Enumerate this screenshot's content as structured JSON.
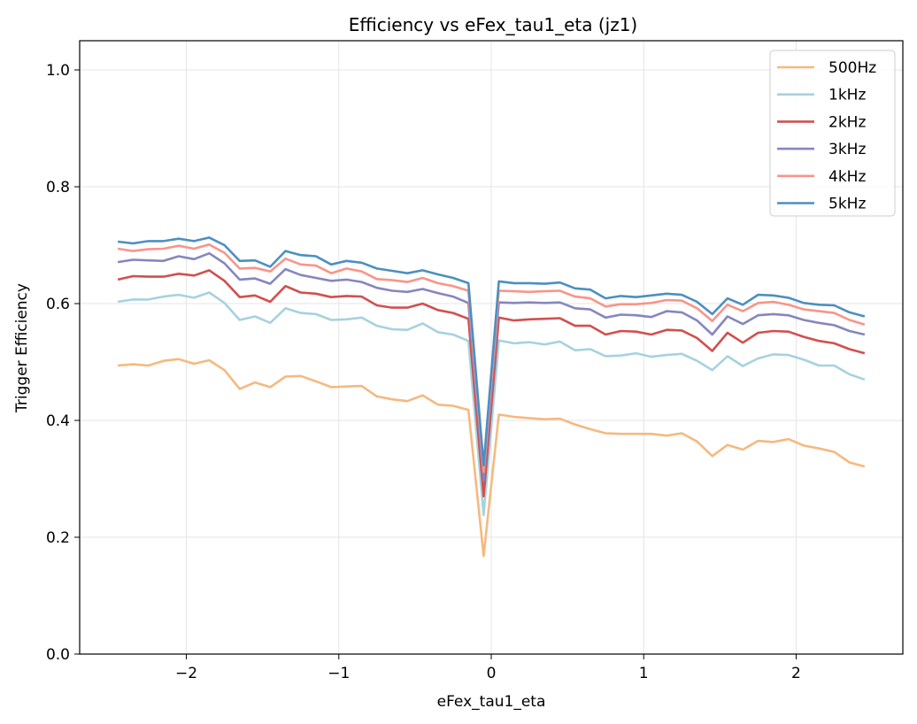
{
  "chart_data": {
    "type": "line",
    "title": "Efficiency vs eFex_tau1_eta (jz1)",
    "xlabel": "eFex_tau1_eta",
    "ylabel": "Trigger Efficiency",
    "xlim": [
      -2.7,
      2.7
    ],
    "ylim": [
      0.0,
      1.05
    ],
    "xticks": [
      -2,
      -1,
      0,
      1,
      2
    ],
    "xtick_labels": [
      "−2",
      "−1",
      "0",
      "1",
      "2"
    ],
    "yticks": [
      0.0,
      0.2,
      0.4,
      0.6,
      0.8,
      1.0
    ],
    "ytick_labels": [
      "0.0",
      "0.2",
      "0.4",
      "0.6",
      "0.8",
      "1.0"
    ],
    "grid": true,
    "legend_position": "top-right",
    "x": [
      -2.45,
      -2.35,
      -2.25,
      -2.15,
      -2.05,
      -1.95,
      -1.85,
      -1.75,
      -1.65,
      -1.55,
      -1.45,
      -1.35,
      -1.25,
      -1.15,
      -1.05,
      -0.95,
      -0.85,
      -0.75,
      -0.65,
      -0.55,
      -0.45,
      -0.35,
      -0.25,
      -0.15,
      -0.05,
      0.05,
      0.15,
      0.25,
      0.35,
      0.45,
      0.55,
      0.65,
      0.75,
      0.85,
      0.95,
      1.05,
      1.15,
      1.25,
      1.35,
      1.45,
      1.55,
      1.65,
      1.75,
      1.85,
      1.95,
      2.05,
      2.15,
      2.25,
      2.35,
      2.45
    ],
    "series": [
      {
        "name": "500Hz",
        "color": "#f5b97f",
        "values": [
          0.494,
          0.496,
          0.494,
          0.502,
          0.505,
          0.497,
          0.503,
          0.486,
          0.454,
          0.465,
          0.457,
          0.475,
          0.476,
          0.467,
          0.457,
          0.458,
          0.459,
          0.441,
          0.436,
          0.433,
          0.443,
          0.427,
          0.425,
          0.418,
          0.168,
          0.41,
          0.406,
          0.404,
          0.402,
          0.403,
          0.393,
          0.385,
          0.378,
          0.377,
          0.377,
          0.377,
          0.374,
          0.378,
          0.364,
          0.339,
          0.358,
          0.35,
          0.365,
          0.363,
          0.368,
          0.357,
          0.352,
          0.346,
          0.328,
          0.321
        ]
      },
      {
        "name": "1kHz",
        "color": "#a6d2e0",
        "values": [
          0.603,
          0.607,
          0.607,
          0.612,
          0.615,
          0.61,
          0.619,
          0.601,
          0.572,
          0.578,
          0.567,
          0.592,
          0.584,
          0.582,
          0.572,
          0.573,
          0.576,
          0.562,
          0.556,
          0.555,
          0.566,
          0.551,
          0.547,
          0.536,
          0.238,
          0.537,
          0.532,
          0.534,
          0.53,
          0.535,
          0.52,
          0.522,
          0.51,
          0.511,
          0.515,
          0.509,
          0.512,
          0.514,
          0.502,
          0.486,
          0.51,
          0.493,
          0.506,
          0.513,
          0.512,
          0.504,
          0.494,
          0.494,
          0.479,
          0.47
        ]
      },
      {
        "name": "2kHz",
        "color": "#d1504e",
        "values": [
          0.641,
          0.647,
          0.646,
          0.646,
          0.651,
          0.648,
          0.657,
          0.639,
          0.611,
          0.614,
          0.603,
          0.63,
          0.619,
          0.617,
          0.611,
          0.613,
          0.612,
          0.597,
          0.593,
          0.593,
          0.6,
          0.589,
          0.584,
          0.574,
          0.27,
          0.576,
          0.571,
          0.573,
          0.574,
          0.575,
          0.562,
          0.562,
          0.547,
          0.553,
          0.552,
          0.547,
          0.555,
          0.554,
          0.541,
          0.519,
          0.55,
          0.533,
          0.55,
          0.553,
          0.552,
          0.543,
          0.536,
          0.532,
          0.522,
          0.515
        ]
      },
      {
        "name": "3kHz",
        "color": "#8686bf",
        "values": [
          0.671,
          0.675,
          0.674,
          0.673,
          0.681,
          0.676,
          0.686,
          0.669,
          0.641,
          0.643,
          0.634,
          0.659,
          0.649,
          0.644,
          0.639,
          0.641,
          0.637,
          0.627,
          0.622,
          0.62,
          0.625,
          0.618,
          0.612,
          0.601,
          0.298,
          0.602,
          0.601,
          0.602,
          0.601,
          0.602,
          0.592,
          0.59,
          0.576,
          0.581,
          0.58,
          0.577,
          0.587,
          0.585,
          0.571,
          0.547,
          0.578,
          0.565,
          0.58,
          0.582,
          0.58,
          0.572,
          0.567,
          0.563,
          0.553,
          0.547
        ]
      },
      {
        "name": "4kHz",
        "color": "#f7958a",
        "values": [
          0.694,
          0.69,
          0.693,
          0.694,
          0.699,
          0.694,
          0.701,
          0.687,
          0.66,
          0.661,
          0.655,
          0.677,
          0.667,
          0.665,
          0.652,
          0.66,
          0.655,
          0.642,
          0.64,
          0.637,
          0.644,
          0.635,
          0.63,
          0.622,
          0.312,
          0.622,
          0.621,
          0.62,
          0.621,
          0.622,
          0.612,
          0.609,
          0.595,
          0.599,
          0.599,
          0.601,
          0.606,
          0.605,
          0.592,
          0.57,
          0.598,
          0.587,
          0.601,
          0.603,
          0.598,
          0.59,
          0.587,
          0.584,
          0.572,
          0.564
        ]
      },
      {
        "name": "5kHz",
        "color": "#4c8fc1",
        "values": [
          0.706,
          0.703,
          0.707,
          0.707,
          0.711,
          0.707,
          0.713,
          0.7,
          0.673,
          0.674,
          0.663,
          0.69,
          0.683,
          0.681,
          0.667,
          0.673,
          0.67,
          0.66,
          0.656,
          0.652,
          0.657,
          0.65,
          0.644,
          0.635,
          0.323,
          0.638,
          0.635,
          0.635,
          0.634,
          0.636,
          0.626,
          0.624,
          0.609,
          0.613,
          0.611,
          0.614,
          0.617,
          0.615,
          0.603,
          0.582,
          0.609,
          0.598,
          0.615,
          0.614,
          0.61,
          0.601,
          0.598,
          0.597,
          0.585,
          0.578
        ]
      }
    ]
  }
}
